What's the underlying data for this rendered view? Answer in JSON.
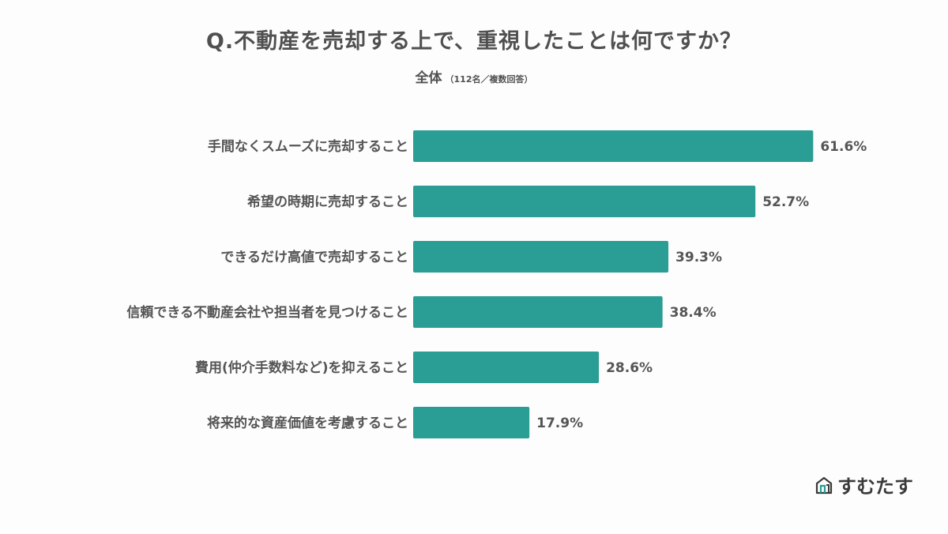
{
  "title": "Q.不動産を売却する上で、重視したことは何ですか？",
  "subtitle": {
    "main": "全体",
    "note": "（112名／複数回答）"
  },
  "brand": {
    "name": "すむたす",
    "icon": "house-logo-icon"
  },
  "colors": {
    "bar": "#2a9d94",
    "text": "#555555",
    "background": "#fdfdfd"
  },
  "chart_data": {
    "type": "bar",
    "orientation": "horizontal",
    "categories": [
      "手間なくスムーズに売却すること",
      "希望の時期に売却すること",
      "できるだけ高値で売却すること",
      "信頼できる不動産会社や担当者を見つけること",
      "費用(仲介手数料など)を抑えること",
      "将来的な資産価値を考慮すること"
    ],
    "values": [
      61.6,
      52.7,
      39.3,
      38.4,
      28.6,
      17.9
    ],
    "value_labels": [
      "61.6%",
      "52.7%",
      "39.3%",
      "38.4%",
      "28.6%",
      "17.9%"
    ],
    "unit": "%",
    "grid": false,
    "legend": "none"
  }
}
